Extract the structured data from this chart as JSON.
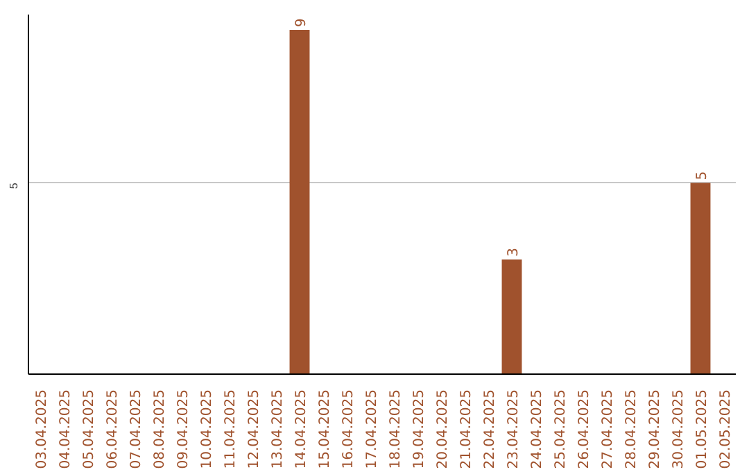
{
  "chart_data": {
    "type": "bar",
    "categories": [
      "03.04.2025",
      "04.04.2025",
      "05.04.2025",
      "06.04.2025",
      "07.04.2025",
      "08.04.2025",
      "09.04.2025",
      "10.04.2025",
      "11.04.2025",
      "12.04.2025",
      "13.04.2025",
      "14.04.2025",
      "15.04.2025",
      "16.04.2025",
      "17.04.2025",
      "18.04.2025",
      "19.04.2025",
      "20.04.2025",
      "21.04.2025",
      "22.04.2025",
      "23.04.2025",
      "24.04.2025",
      "25.04.2025",
      "26.04.2025",
      "27.04.2025",
      "28.04.2025",
      "29.04.2025",
      "30.04.2025",
      "01.05.2025",
      "02.05.2025"
    ],
    "values": [
      0,
      0,
      0,
      0,
      0,
      0,
      0,
      0,
      0,
      0,
      0,
      9,
      0,
      0,
      0,
      0,
      0,
      0,
      0,
      0,
      3,
      0,
      0,
      0,
      0,
      0,
      0,
      0,
      5,
      0
    ],
    "value_labels": [
      null,
      null,
      null,
      null,
      null,
      null,
      null,
      null,
      null,
      null,
      null,
      "9",
      null,
      null,
      null,
      null,
      null,
      null,
      null,
      null,
      "3",
      null,
      null,
      null,
      null,
      null,
      null,
      null,
      "5",
      null
    ],
    "color": "#a0522d",
    "ylim": [
      0,
      9.4
    ],
    "yticks": [
      5
    ],
    "grid": "y"
  }
}
